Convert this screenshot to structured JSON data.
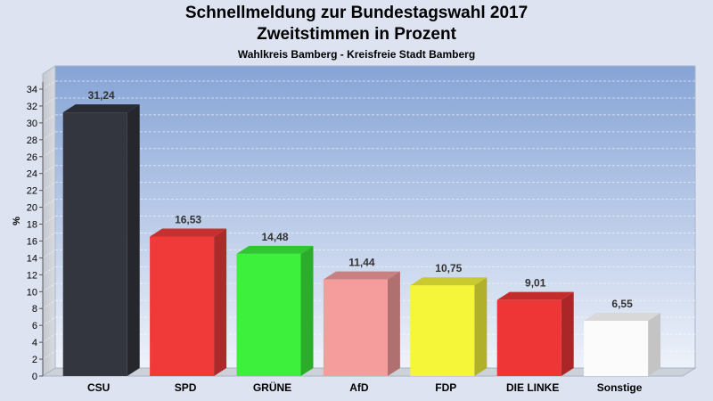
{
  "chart": {
    "title": "Schnellmeldung zur Bundestagswahl 2017",
    "subtitle_line": "Zweitstimmen in Prozent",
    "caption": "Wahlkreis Bamberg - Kreisfreie Stadt Bamberg"
  },
  "chart_data": {
    "type": "bar",
    "title": "Schnellmeldung zur Bundestagswahl 2017",
    "subtitle": "Zweitstimmen in Prozent",
    "caption": "Wahlkreis Bamberg - Kreisfreie Stadt Bamberg",
    "ylabel": "%",
    "xlabel": "",
    "ylim": [
      0,
      34
    ],
    "ytick_step": 2,
    "grid": true,
    "categories": [
      "CSU",
      "SPD",
      "GRÜNE",
      "AfD",
      "FDP",
      "DIE LINKE",
      "Sonstige"
    ],
    "values": [
      31.24,
      16.53,
      14.48,
      11.44,
      10.75,
      9.01,
      6.55
    ],
    "value_labels": [
      "31,24",
      "16,53",
      "14,48",
      "11,44",
      "10,75",
      "9,01",
      "6,55"
    ],
    "colors": [
      "#33363e",
      "#f03a3a",
      "#3cf03c",
      "#f59c9c",
      "#f5f53a",
      "#ee3636",
      "#fbfbfb"
    ]
  }
}
